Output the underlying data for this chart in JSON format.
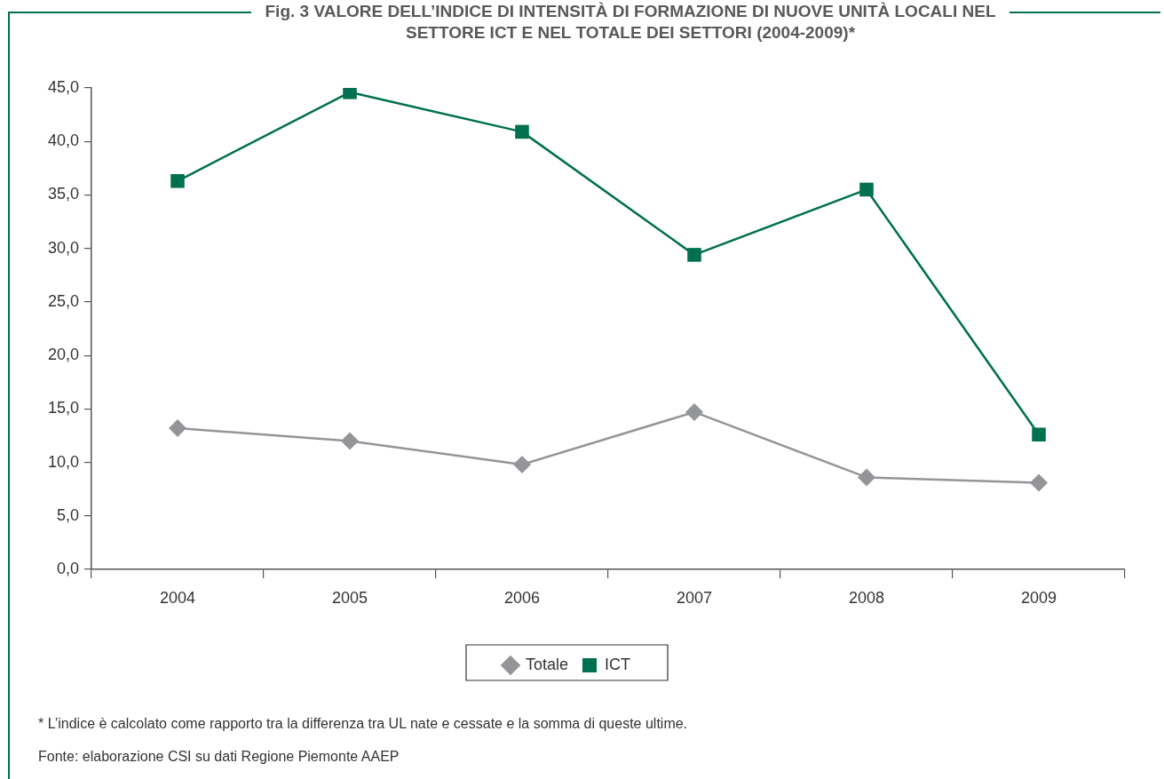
{
  "chart_data": {
    "type": "line",
    "title": "Fig. 3 VALORE DELL’INDICE DI INTENSITÀ DI FORMAZIONE DI NUOVE UNITÀ LOCALI NEL SETTORE ICT E NEL TOTALE DEI SETTORI (2004-2009)*",
    "categories": [
      "2004",
      "2005",
      "2006",
      "2007",
      "2008",
      "2009"
    ],
    "series": [
      {
        "name": "Totale",
        "color": "#939598",
        "marker": "diamond",
        "values": [
          13.2,
          12.0,
          9.8,
          14.7,
          8.6,
          8.1
        ]
      },
      {
        "name": "ICT",
        "color": "#00704f",
        "marker": "square",
        "values": [
          36.3,
          44.6,
          40.9,
          29.4,
          35.5,
          12.6
        ]
      }
    ],
    "ylim": [
      0,
      45
    ],
    "yticks": [
      {
        "value": 0,
        "label": "0,0"
      },
      {
        "value": 5,
        "label": "5,0"
      },
      {
        "value": 10,
        "label": "10,0"
      },
      {
        "value": 15,
        "label": "15,0"
      },
      {
        "value": 20,
        "label": "20,0"
      },
      {
        "value": 25,
        "label": "25,0"
      },
      {
        "value": 30,
        "label": "30,0"
      },
      {
        "value": 35,
        "label": "35,0"
      },
      {
        "value": 40,
        "label": "40,0"
      },
      {
        "value": 45,
        "label": "45,0"
      }
    ],
    "grid": false,
    "legend": "bottom",
    "line_style": "solid",
    "annotations": [
      "* L’indice è calcolato come rapporto tra la differenza tra UL nate e cessate e la somma di queste ultime.",
      "Fonte: elaborazione CSI su dati Regione Piemonte AAEP"
    ]
  }
}
